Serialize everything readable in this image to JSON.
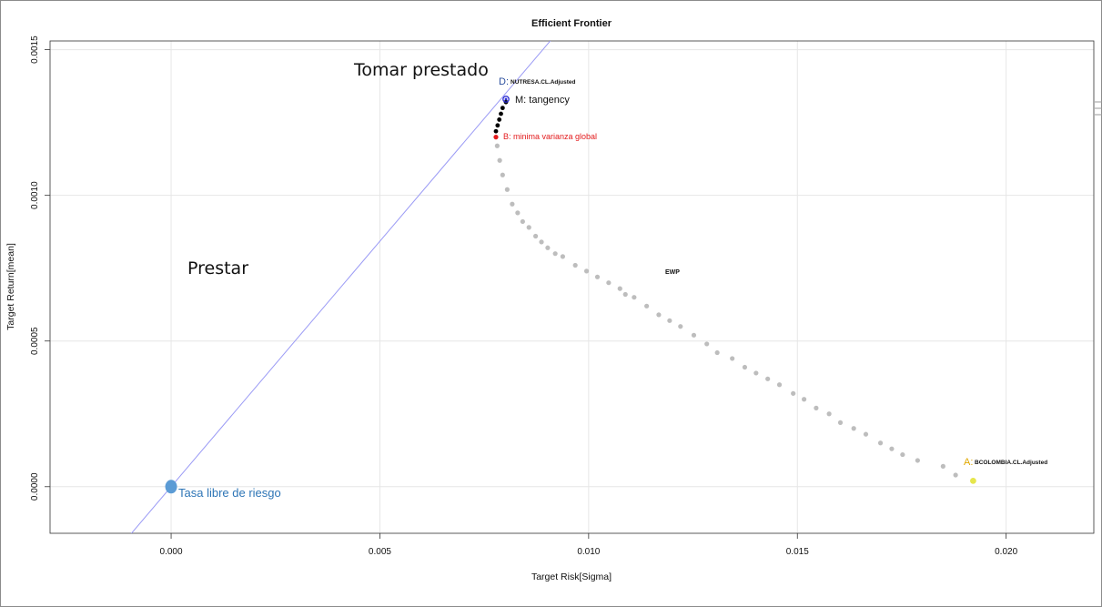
{
  "chart_data": {
    "type": "scatter",
    "title": "Efficient Frontier",
    "xlabel": "Target Risk[Sigma]",
    "ylabel": "Target Return[mean]",
    "xlim": [
      -0.0029,
      0.0221
    ],
    "ylim": [
      -0.00016,
      0.00153
    ],
    "x_ticks": [
      "0.000",
      "0.005",
      "0.010",
      "0.015",
      "0.020"
    ],
    "y_ticks": [
      "0.0000",
      "0.0005",
      "0.0010",
      "0.0015"
    ],
    "grid": true,
    "colors": {
      "frontier_points": "#bdbdbd",
      "efficient_points": "#000000",
      "min_variance": "#e31a1c",
      "tangency": "#2b2bd1",
      "capital_market_line": "#9a9af5",
      "asset_a": "#e0a800",
      "asset_point": "#e6e64c",
      "risk_free": "#5b9bd5"
    },
    "capital_market_line": {
      "intercept": 0.0,
      "slope": 0.1685
    },
    "series": [
      {
        "name": "frontier",
        "points": [
          [
            0.00781,
            0.00117
          ],
          [
            0.00787,
            0.00112
          ],
          [
            0.00794,
            0.00107
          ],
          [
            0.00805,
            0.00102
          ],
          [
            0.00817,
            0.00097
          ],
          [
            0.0083,
            0.00094
          ],
          [
            0.00842,
            0.00091
          ],
          [
            0.00857,
            0.00089
          ],
          [
            0.00873,
            0.00086
          ],
          [
            0.00887,
            0.00084
          ],
          [
            0.00902,
            0.00082
          ],
          [
            0.0092,
            0.0008
          ],
          [
            0.00938,
            0.00079
          ],
          [
            0.00968,
            0.00076
          ],
          [
            0.00995,
            0.00074
          ],
          [
            0.01021,
            0.00072
          ],
          [
            0.01048,
            0.0007
          ],
          [
            0.01075,
            0.00068
          ],
          [
            0.01088,
            0.00066
          ],
          [
            0.01109,
            0.00065
          ],
          [
            0.01139,
            0.00062
          ],
          [
            0.01168,
            0.00059
          ],
          [
            0.01194,
            0.00057
          ],
          [
            0.0122,
            0.00055
          ],
          [
            0.01252,
            0.00052
          ],
          [
            0.01283,
            0.00049
          ],
          [
            0.01308,
            0.00046
          ],
          [
            0.01344,
            0.00044
          ],
          [
            0.01374,
            0.00041
          ],
          [
            0.01401,
            0.00039
          ],
          [
            0.01429,
            0.00037
          ],
          [
            0.01457,
            0.00035
          ],
          [
            0.0149,
            0.00032
          ],
          [
            0.01516,
            0.0003
          ],
          [
            0.01545,
            0.00027
          ],
          [
            0.01576,
            0.00025
          ],
          [
            0.01603,
            0.00022
          ],
          [
            0.01635,
            0.0002
          ],
          [
            0.01664,
            0.00018
          ],
          [
            0.01699,
            0.00015
          ],
          [
            0.01726,
            0.00013
          ],
          [
            0.01752,
            0.00011
          ],
          [
            0.01788,
            9e-05
          ],
          [
            0.01849,
            7e-05
          ],
          [
            0.01879,
            4e-05
          ]
        ]
      },
      {
        "name": "efficient",
        "points": [
          [
            0.00778,
            0.00122
          ],
          [
            0.00782,
            0.00124
          ],
          [
            0.00786,
            0.00126
          ],
          [
            0.0079,
            0.00128
          ],
          [
            0.00794,
            0.0013
          ],
          [
            0.00802,
            0.00132
          ]
        ]
      }
    ],
    "special_points": [
      {
        "key": "risk_free",
        "x": 0.0,
        "y": 0.0
      },
      {
        "key": "asset_a",
        "x": 0.01921,
        "y": 2e-05
      },
      {
        "key": "min_variance",
        "x": 0.00778,
        "y": 0.0012
      },
      {
        "key": "tangency",
        "x": 0.00802,
        "y": 0.00133
      }
    ],
    "labels": {
      "ewp": "EWP",
      "asset_a_prefix": "A:",
      "asset_a_name": "BCOLOMBIA.CL.Adjusted",
      "asset_d_prefix": "D:",
      "asset_d_name": "NUTRESA.CL.Adjusted",
      "tangency": "M: tangency",
      "min_variance": "B: minima varianza global",
      "borrow": "Tomar prestado",
      "lend": "Prestar",
      "risk_free": "Tasa libre de riesgo"
    }
  }
}
